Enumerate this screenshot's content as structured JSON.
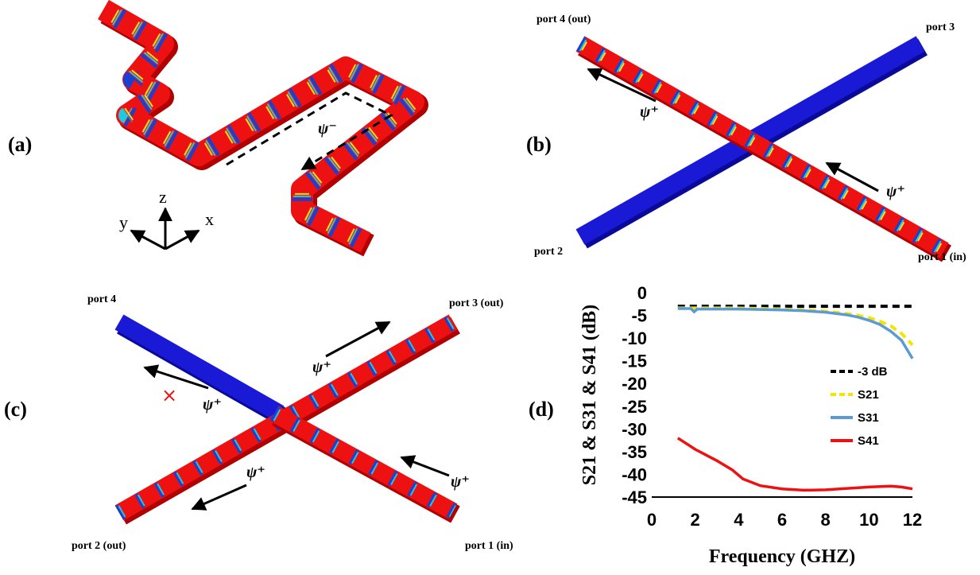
{
  "panels": {
    "a": {
      "label": "(a)",
      "mode": "ψ⁻",
      "axes": {
        "x": "x",
        "y": "y",
        "z": "z"
      }
    },
    "b": {
      "label": "(b)",
      "port1": "port 1 (in)",
      "port2": "port 2",
      "port3": "port 3",
      "port4": "port 4 (out)",
      "mode": "ψ⁺"
    },
    "c": {
      "label": "(c)",
      "port1": "port 1 (in)",
      "port2": "port 2 (out)",
      "port3": "port 3 (out)",
      "port4": "port 4",
      "mode": "ψ⁺",
      "blocked": "×"
    },
    "d": {
      "label": "(d)"
    }
  },
  "colors": {
    "waveguide": "#ee1111",
    "blocked_guide": "#1a1ad6",
    "band_blue": "#1c3fd0",
    "band_cyan": "#22c8e0",
    "band_yellow": "#f2e020"
  },
  "chart_data": {
    "type": "line",
    "xlabel": "Frequency (GHZ)",
    "ylabel": "S21 & S31 & S41 (dB)",
    "xlim": [
      0,
      12
    ],
    "ylim": [
      -45,
      0
    ],
    "xticks": [
      "0",
      "2",
      "4",
      "6",
      "8",
      "10",
      "12"
    ],
    "yticks": [
      "0",
      "-5",
      "-10",
      "-15",
      "-20",
      "-25",
      "-30",
      "-35",
      "-40",
      "-45"
    ],
    "legend_position": "right",
    "series": [
      {
        "name": "-3 dB",
        "color": "#000000",
        "style": "dashed",
        "x": [
          1.2,
          12.1
        ],
        "y": [
          -3,
          -3
        ]
      },
      {
        "name": "S21",
        "color": "#f5e400",
        "style": "dashed",
        "x": [
          1.2,
          2,
          3,
          4,
          5,
          6,
          7,
          8,
          9,
          9.5,
          10,
          10.5,
          11,
          11.5,
          12
        ],
        "y": [
          -3.4,
          -3.4,
          -3.4,
          -3.4,
          -3.5,
          -3.6,
          -3.8,
          -4.1,
          -4.6,
          -5.0,
          -5.5,
          -6.3,
          -7.3,
          -9.0,
          -11.5
        ]
      },
      {
        "name": "S31",
        "color": "#5b9bd5",
        "style": "solid",
        "x": [
          1.2,
          1.8,
          1.95,
          2.1,
          3,
          4,
          5,
          6,
          7,
          8,
          9,
          9.5,
          10,
          10.5,
          11,
          11.5,
          12
        ],
        "y": [
          -3.5,
          -3.5,
          -4.2,
          -3.6,
          -3.6,
          -3.6,
          -3.7,
          -3.8,
          -4.0,
          -4.3,
          -4.9,
          -5.4,
          -6.1,
          -7.0,
          -8.5,
          -10.5,
          -14.5
        ]
      },
      {
        "name": "S41",
        "color": "#ee1111",
        "style": "solid",
        "x": [
          1.2,
          2,
          3,
          3.7,
          4.2,
          5,
          6,
          7,
          8,
          9,
          10,
          11,
          11.5,
          12
        ],
        "y": [
          -32,
          -34.5,
          -37,
          -39,
          -41,
          -42.5,
          -43.2,
          -43.5,
          -43.4,
          -43.1,
          -42.8,
          -42.6,
          -42.8,
          -43.2
        ]
      }
    ]
  }
}
